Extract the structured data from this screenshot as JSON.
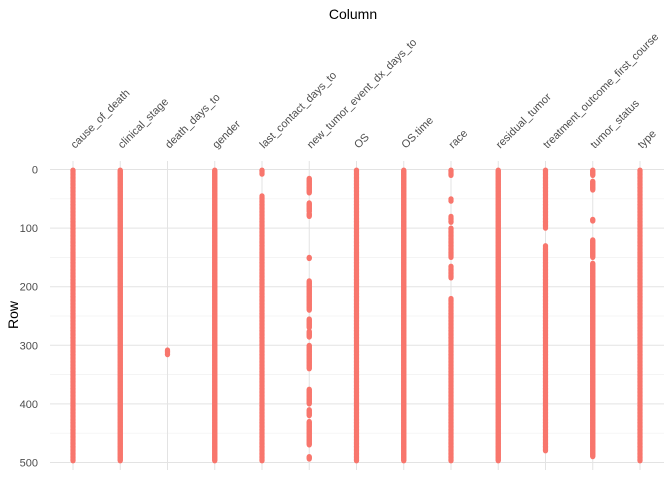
{
  "chart_data": {
    "type": "scatter",
    "title": "",
    "xlabel": "Column",
    "ylabel": "Row",
    "x_axis_position": "top",
    "y_reversed": true,
    "ylim": [
      0,
      500
    ],
    "yticks": [
      0,
      100,
      200,
      300,
      400,
      500
    ],
    "grid": true,
    "legend": "none",
    "point_color": "#F8766D",
    "columns": [
      "cause_of_death",
      "clinical_stage",
      "death_days_to",
      "gender",
      "last_contact_days_to",
      "new_tumor_event_dx_days_to",
      "OS",
      "OS.time",
      "race",
      "residual_tumor",
      "treatment_outcome_first_course",
      "tumor_status",
      "type"
    ],
    "missing_row_ranges": [
      {
        "column": "cause_of_death",
        "ranges": [
          [
            1,
            497
          ]
        ]
      },
      {
        "column": "clinical_stage",
        "ranges": [
          [
            1,
            497
          ]
        ]
      },
      {
        "column": "death_days_to",
        "ranges": [
          [
            308,
            316
          ]
        ]
      },
      {
        "column": "gender",
        "ranges": [
          [
            1,
            497
          ]
        ]
      },
      {
        "column": "last_contact_days_to",
        "ranges": [
          [
            1,
            8
          ],
          [
            45,
            497
          ]
        ]
      },
      {
        "column": "new_tumor_event_dx_days_to",
        "ranges": [
          [
            15,
            40
          ],
          [
            57,
            72
          ],
          [
            75,
            80
          ],
          [
            150,
            152
          ],
          [
            190,
            240
          ],
          [
            255,
            270
          ],
          [
            276,
            286
          ],
          [
            300,
            340
          ],
          [
            375,
            400
          ],
          [
            410,
            420
          ],
          [
            430,
            470
          ],
          [
            490,
            494
          ]
        ]
      },
      {
        "column": "OS",
        "ranges": [
          [
            1,
            497
          ]
        ]
      },
      {
        "column": "OS.time",
        "ranges": [
          [
            1,
            497
          ]
        ]
      },
      {
        "column": "race",
        "ranges": [
          [
            1,
            10
          ],
          [
            50,
            54
          ],
          [
            80,
            90
          ],
          [
            100,
            150
          ],
          [
            165,
            185
          ],
          [
            220,
            497
          ]
        ]
      },
      {
        "column": "residual_tumor",
        "ranges": [
          [
            1,
            497
          ]
        ]
      },
      {
        "column": "treatment_outcome_first_course",
        "ranges": [
          [
            1,
            100
          ],
          [
            130,
            480
          ]
        ]
      },
      {
        "column": "tumor_status",
        "ranges": [
          [
            1,
            10
          ],
          [
            20,
            35
          ],
          [
            85,
            88
          ],
          [
            120,
            150
          ],
          [
            160,
            490
          ]
        ]
      },
      {
        "column": "type",
        "ranges": [
          [
            1,
            497
          ]
        ]
      }
    ]
  }
}
